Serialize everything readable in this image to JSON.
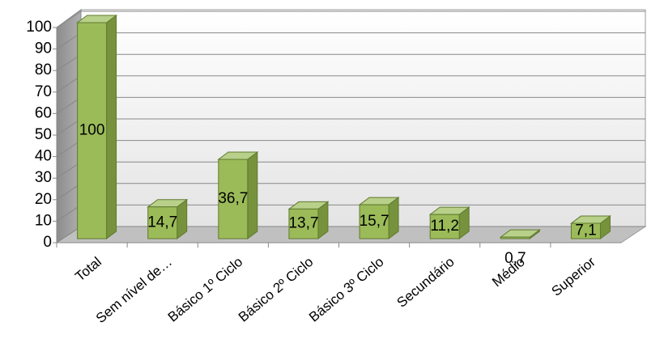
{
  "chart_data": {
    "type": "bar3d",
    "categories": [
      "Total",
      "Sem nível de…",
      "Básico 1º Ciclo",
      "Básico 2º Ciclo",
      "Básico 3º Ciclo",
      "Secundário",
      "Médio",
      "Superior"
    ],
    "values": [
      100,
      14.7,
      36.7,
      13.7,
      15.7,
      11.2,
      0.7,
      7.1
    ],
    "value_labels": [
      "100",
      "14,7",
      "36,7",
      "13,7",
      "15,7",
      "11,2",
      "0,7",
      "7,1"
    ],
    "color": "#9bbb59",
    "ylim": [
      0,
      100
    ],
    "yticks": [
      0,
      10,
      20,
      30,
      40,
      50,
      60,
      70,
      80,
      90,
      100
    ],
    "grid": true
  }
}
